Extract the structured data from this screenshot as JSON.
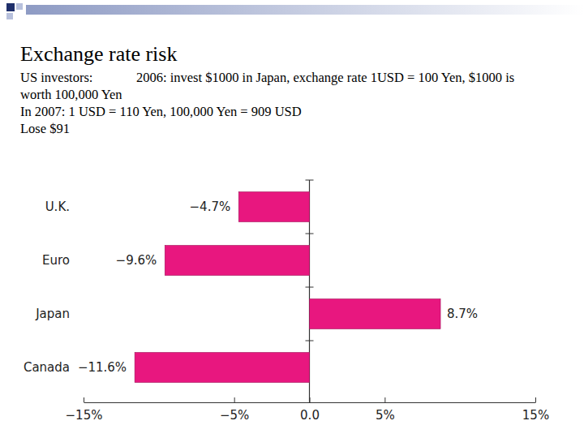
{
  "chart_data": {
    "type": "bar",
    "orientation": "horizontal",
    "title": "Exchange rate risk",
    "annotations": [
      "US investors:",
      "2006: invest $1000 in Japan, exchange rate 1USD = 100 Yen, $1000 is",
      "worth 100,000 Yen",
      "In 2007: 1 USD = 110 Yen, 100,000 Yen = 909 USD",
      "Lose $91"
    ],
    "categories": [
      "U.K.",
      "Euro",
      "Japan",
      "Canada"
    ],
    "values": [
      -4.7,
      -9.6,
      8.7,
      -11.6
    ],
    "value_labels": [
      "−4.7%",
      "−9.6%",
      "8.7%",
      "−11.6%"
    ],
    "data_labels": true,
    "color": "#e8177f",
    "xlim": [
      -15,
      15
    ],
    "xticks": [
      {
        "value": -15,
        "label": "−15%"
      },
      {
        "value": -5,
        "label": "−5%"
      },
      {
        "value": 0,
        "label": "0.0"
      },
      {
        "value": 5,
        "label": "5%"
      },
      {
        "value": 15,
        "label": "15%"
      }
    ]
  }
}
